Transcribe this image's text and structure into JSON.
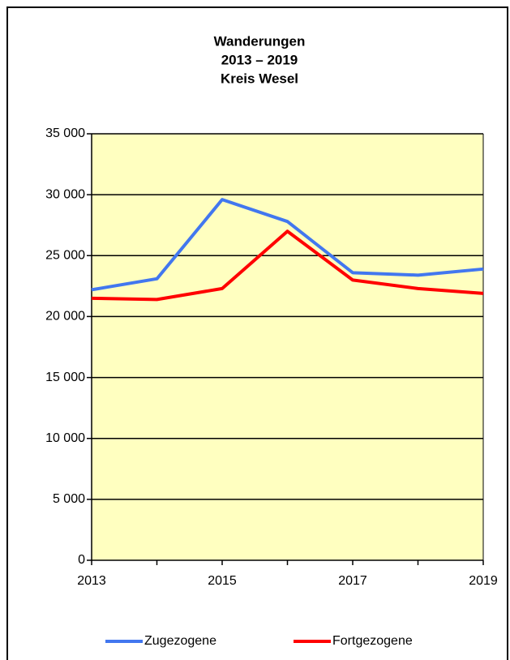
{
  "chart_data": {
    "type": "line",
    "title": [
      "Wanderungen",
      "2013 – 2019",
      "Kreis Wesel"
    ],
    "categories": [
      "2013",
      null,
      "2015",
      null,
      "2017",
      null,
      "2019"
    ],
    "series": [
      {
        "name": "Zugezogene",
        "color": "#4277ef",
        "values": [
          22200,
          23100,
          29600,
          27800,
          23600,
          23400,
          23900
        ]
      },
      {
        "name": "Fortgezogene",
        "color": "#ff0000",
        "values": [
          21500,
          21400,
          22300,
          27000,
          23000,
          22300,
          21900
        ]
      }
    ],
    "ylim": [
      0,
      35000
    ],
    "yticks": [
      0,
      {
        "value": 5000,
        "label": "5 000"
      },
      {
        "value": 10000,
        "label": "10 000"
      },
      {
        "value": 15000,
        "label": "15 000"
      },
      {
        "value": 20000,
        "label": "20 000"
      },
      {
        "value": 25000,
        "label": "25 000"
      },
      {
        "value": 30000,
        "label": "30 000"
      },
      {
        "value": 35000,
        "label": "35 000"
      }
    ],
    "grid": true,
    "legend": "bottom"
  }
}
